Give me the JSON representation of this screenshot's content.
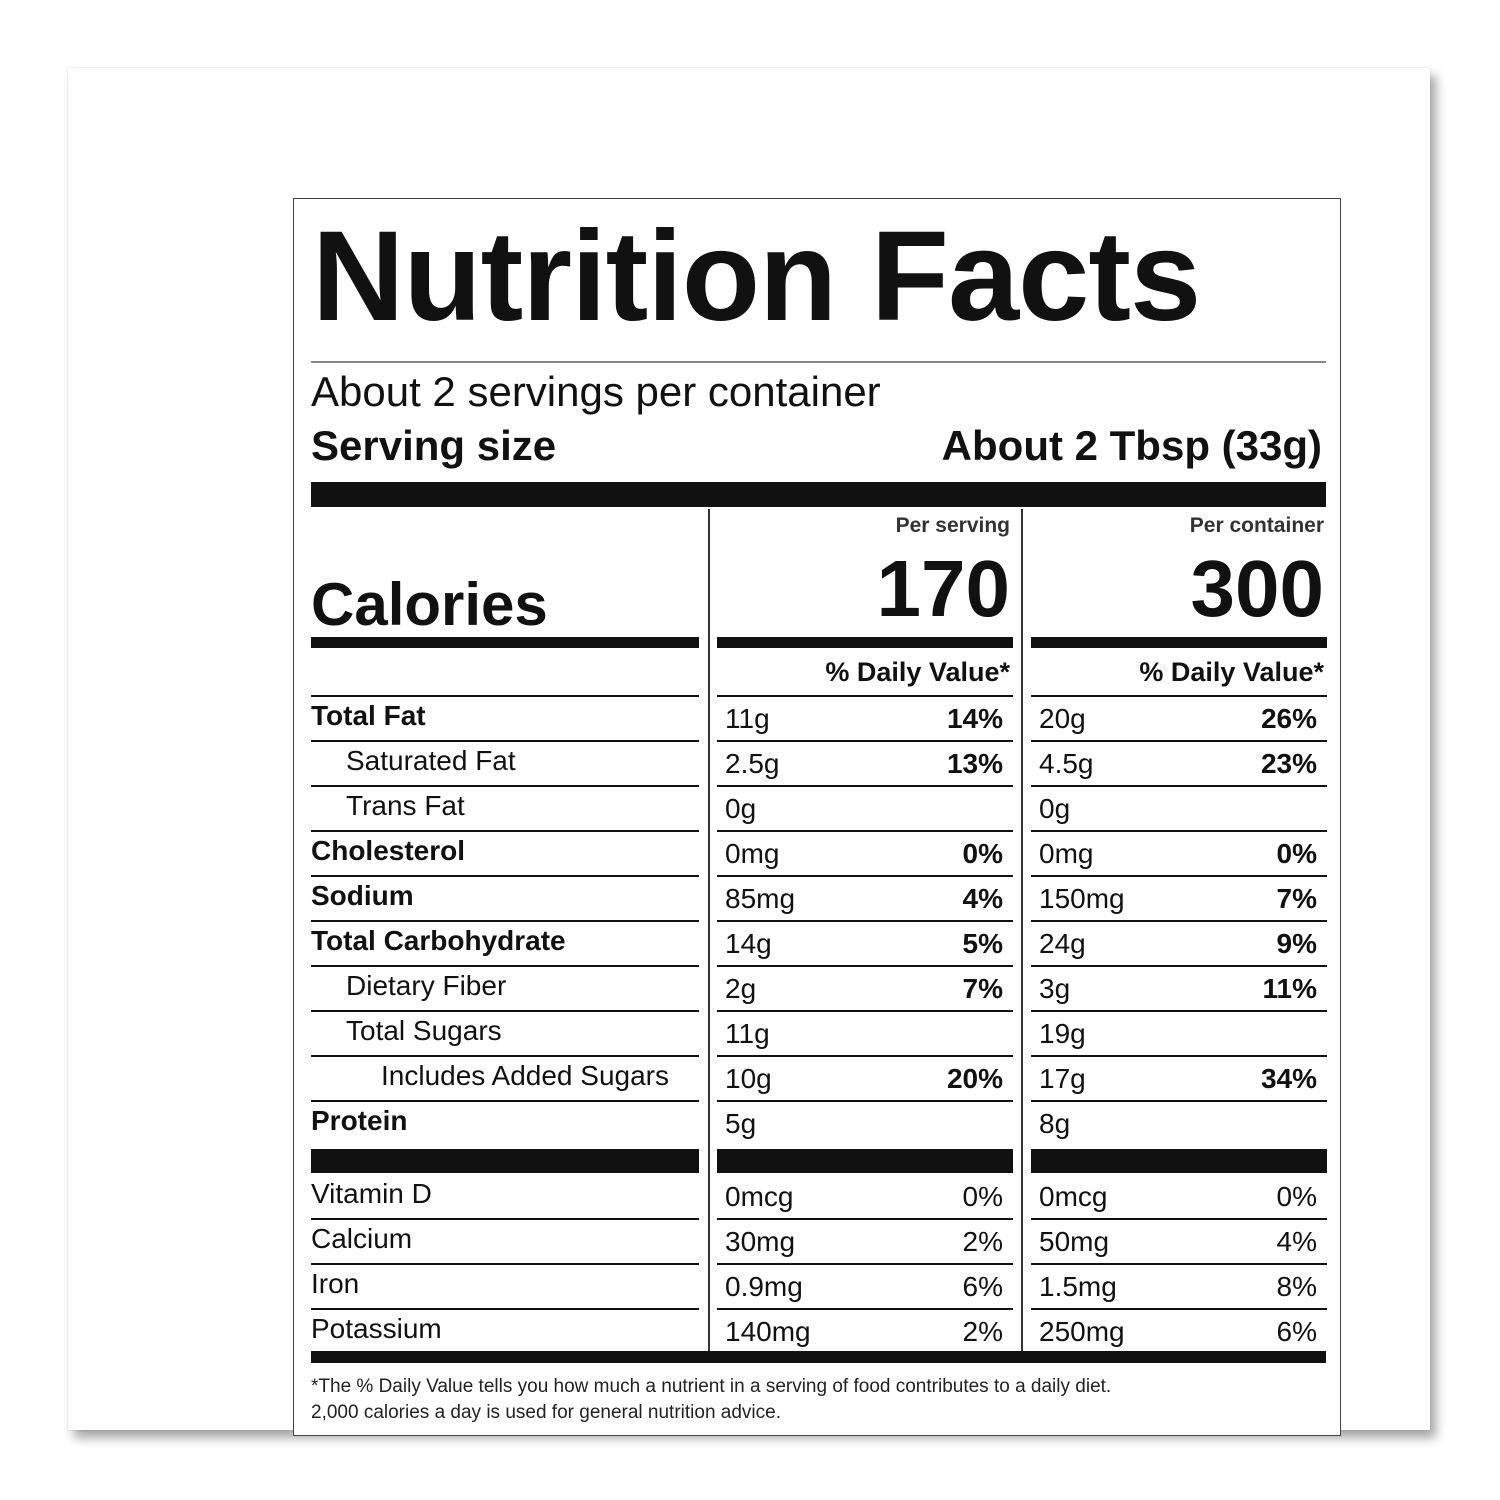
{
  "title": "Nutrition Facts",
  "servings_per_container": "About 2 servings per container",
  "serving_size_label": "Serving size",
  "serving_size_value": "About 2 Tbsp (33g)",
  "calories_label": "Calories",
  "columns": [
    {
      "header": "Per serving",
      "calories": "170",
      "dv_header": "% Daily Value*"
    },
    {
      "header": "Per container",
      "calories": "300",
      "dv_header": "% Daily Value*"
    }
  ],
  "nutrients": [
    {
      "name": "Total Fat",
      "bold": true,
      "indent": 0,
      "serving": {
        "amount": "11g",
        "dv": "14%"
      },
      "container": {
        "amount": "20g",
        "dv": "26%"
      }
    },
    {
      "name": "Saturated Fat",
      "bold": false,
      "indent": 1,
      "serving": {
        "amount": "2.5g",
        "dv": "13%"
      },
      "container": {
        "amount": "4.5g",
        "dv": "23%"
      }
    },
    {
      "name": "Trans Fat",
      "bold": false,
      "indent": 1,
      "serving": {
        "amount": "0g",
        "dv": ""
      },
      "container": {
        "amount": "0g",
        "dv": ""
      }
    },
    {
      "name": "Cholesterol",
      "bold": true,
      "indent": 0,
      "serving": {
        "amount": "0mg",
        "dv": "0%"
      },
      "container": {
        "amount": "0mg",
        "dv": "0%"
      }
    },
    {
      "name": "Sodium",
      "bold": true,
      "indent": 0,
      "serving": {
        "amount": "85mg",
        "dv": "4%"
      },
      "container": {
        "amount": "150mg",
        "dv": "7%"
      }
    },
    {
      "name": "Total Carbohydrate",
      "bold": true,
      "indent": 0,
      "serving": {
        "amount": "14g",
        "dv": "5%"
      },
      "container": {
        "amount": "24g",
        "dv": "9%"
      }
    },
    {
      "name": "Dietary Fiber",
      "bold": false,
      "indent": 1,
      "serving": {
        "amount": "2g",
        "dv": "7%"
      },
      "container": {
        "amount": "3g",
        "dv": "11%"
      }
    },
    {
      "name": "Total Sugars",
      "bold": false,
      "indent": 1,
      "serving": {
        "amount": "11g",
        "dv": ""
      },
      "container": {
        "amount": "19g",
        "dv": ""
      }
    },
    {
      "name": "Includes Added Sugars",
      "bold": false,
      "indent": 2,
      "serving": {
        "amount": "10g",
        "dv": "20%"
      },
      "container": {
        "amount": "17g",
        "dv": "34%"
      }
    },
    {
      "name": "Protein",
      "bold": true,
      "indent": 0,
      "serving": {
        "amount": "5g",
        "dv": ""
      },
      "container": {
        "amount": "8g",
        "dv": ""
      }
    }
  ],
  "vitamins": [
    {
      "name": "Vitamin D",
      "serving": {
        "amount": "0mcg",
        "dv": "0%"
      },
      "container": {
        "amount": "0mcg",
        "dv": "0%"
      }
    },
    {
      "name": "Calcium",
      "serving": {
        "amount": "30mg",
        "dv": "2%"
      },
      "container": {
        "amount": "50mg",
        "dv": "4%"
      }
    },
    {
      "name": "Iron",
      "serving": {
        "amount": "0.9mg",
        "dv": "6%"
      },
      "container": {
        "amount": "1.5mg",
        "dv": "8%"
      }
    },
    {
      "name": "Potassium",
      "serving": {
        "amount": "140mg",
        "dv": "2%"
      },
      "container": {
        "amount": "250mg",
        "dv": "6%"
      }
    }
  ],
  "footnote_line1": "*The % Daily Value tells you how much a nutrient in a serving of food contributes to a daily diet.",
  "footnote_line2": "2,000 calories a day is used for general nutrition advice."
}
